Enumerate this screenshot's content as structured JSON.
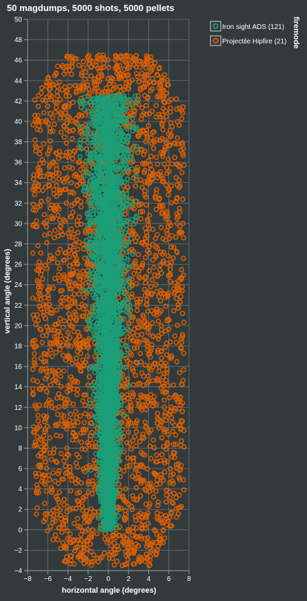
{
  "chart_data": {
    "type": "scatter",
    "title": "50 magdumps, 5000 shots, 5000 pellets",
    "xlabel": "horizontal angle (degrees)",
    "ylabel": "vertical angle (degrees)",
    "xlim": [
      -8,
      8
    ],
    "ylim": [
      -4,
      50
    ],
    "x_ticks": [
      -8,
      -6,
      -4,
      -2,
      0,
      2,
      4,
      6,
      8
    ],
    "y_ticks": [
      -4,
      -2,
      0,
      2,
      4,
      6,
      8,
      10,
      12,
      14,
      16,
      18,
      20,
      22,
      24,
      26,
      28,
      30,
      32,
      34,
      36,
      38,
      40,
      42,
      44,
      46,
      48,
      50
    ],
    "grid": true,
    "legend": {
      "title": "firemode",
      "placement": "right"
    },
    "series": [
      {
        "name": "Iron sight ADS (121)",
        "color": "#1b9e77",
        "marker": "open-circle",
        "count": 5000,
        "x_spread_bottom": 0.4,
        "x_spread_top": 1.6,
        "y_range": [
          0,
          42.5
        ]
      },
      {
        "name": "Projectile Hipfire (21)",
        "color": "#d95f02",
        "marker": "open-circle",
        "count": 5000,
        "x_range": [
          -7.5,
          7.5
        ],
        "y_range": [
          -3.5,
          46.5
        ]
      }
    ]
  }
}
